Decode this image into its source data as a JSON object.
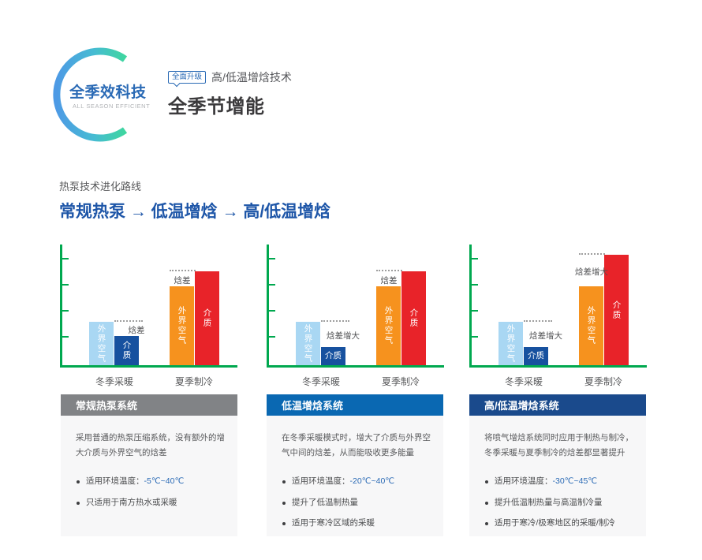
{
  "brand": {
    "logo_text": "全季效科技",
    "logo_subtext": "ALL SEASON EFFICIENT",
    "badge": "全面升级",
    "tagline": "高/低温增焓技术",
    "title": "全季节增能"
  },
  "evolution": {
    "label": "热泵技术进化路线",
    "path": "常规热泵 → 低温增焓 → 高/低温增焓"
  },
  "colors": {
    "axis_green": "#00A84F",
    "bar_light_blue": "#A9D7F3",
    "bar_dark_blue": "#17519F",
    "bar_orange": "#F6921E",
    "bar_red": "#E82329",
    "brand_blue": "#2A6AB5",
    "path_blue": "#1E56A8",
    "dotted_gray": "#9E9E9E",
    "header_colors": [
      "#818386",
      "#0A68B2",
      "#1A4A8C"
    ],
    "logo_gradient": [
      "#4D9AE5",
      "#46BCD2",
      "#3FD6A0"
    ]
  },
  "chart_data": [
    {
      "type": "bar",
      "title": "常规热泵系统",
      "categories": [
        "冬季采暖",
        "夏季制冷"
      ],
      "ylabel": "",
      "xlabel": "",
      "axis_numeric_labels": false,
      "value_note": "relative enthalpy levels, unlabeled green axis with 4 ticks",
      "groups": [
        {
          "category": "冬季采暖",
          "bars": [
            {
              "label": "外界空气",
              "value": 55,
              "color": "#A9D7F3"
            },
            {
              "label": "介质",
              "value": 37,
              "color": "#17519F"
            }
          ],
          "gap_label": "焓差",
          "dashed_line_at": 55
        },
        {
          "category": "夏季制冷",
          "bars": [
            {
              "label": "外界空气",
              "value": 100,
              "color": "#F6921E"
            },
            {
              "label": "介质",
              "value": 119,
              "color": "#E82329"
            }
          ],
          "gap_label": "焓差",
          "dashed_line_at": 119
        }
      ]
    },
    {
      "type": "bar",
      "title": "低温增焓系统",
      "categories": [
        "冬季采暖",
        "夏季制冷"
      ],
      "ylabel": "",
      "xlabel": "",
      "axis_numeric_labels": false,
      "value_note": "relative enthalpy levels, unlabeled green axis with 4 ticks",
      "groups": [
        {
          "category": "冬季采暖",
          "bars": [
            {
              "label": "外界空气",
              "value": 55,
              "color": "#A9D7F3"
            },
            {
              "label": "介质",
              "value": 23,
              "color": "#17519F"
            }
          ],
          "gap_label": "焓差增大",
          "dashed_line_at": 55
        },
        {
          "category": "夏季制冷",
          "bars": [
            {
              "label": "外界空气",
              "value": 100,
              "color": "#F6921E"
            },
            {
              "label": "介质",
              "value": 119,
              "color": "#E82329"
            }
          ],
          "gap_label": "焓差",
          "dashed_line_at": 119
        }
      ]
    },
    {
      "type": "bar",
      "title": "高/低温增焓系统",
      "categories": [
        "冬季采暖",
        "夏季制冷"
      ],
      "ylabel": "",
      "xlabel": "",
      "axis_numeric_labels": false,
      "value_note": "relative enthalpy levels, unlabeled green axis with 4 ticks",
      "groups": [
        {
          "category": "冬季采暖",
          "bars": [
            {
              "label": "外界空气",
              "value": 55,
              "color": "#A9D7F3"
            },
            {
              "label": "介质",
              "value": 23,
              "color": "#17519F"
            }
          ],
          "gap_label": "焓差增大",
          "dashed_line_at": 55
        },
        {
          "category": "夏季制冷",
          "bars": [
            {
              "label": "外界空气",
              "value": 100,
              "color": "#F6921E"
            },
            {
              "label": "介质",
              "value": 140,
              "color": "#E82329"
            }
          ],
          "gap_label": "焓差增大",
          "dashed_line_at": 140
        }
      ]
    }
  ],
  "cards": [
    {
      "title": "常规热泵系统",
      "header_color": "#818386",
      "description": "采用普通的热泵压缩系统，没有额外的增大介质与外界空气的焓差",
      "bullets": [
        {
          "text": "适用环境温度：",
          "highlight": "-5℃~40℃"
        },
        {
          "text": "只适用于南方热水或采暖",
          "highlight": ""
        }
      ]
    },
    {
      "title": "低温增焓系统",
      "header_color": "#0A68B2",
      "description": "在冬季采暖模式时，增大了介质与外界空气中间的焓差，从而能吸收更多能量",
      "bullets": [
        {
          "text": "适用环境温度：",
          "highlight": "-20℃~40℃"
        },
        {
          "text": "提升了低温制热量",
          "highlight": ""
        },
        {
          "text": "适用于寒冷区域的采暖",
          "highlight": ""
        }
      ]
    },
    {
      "title": "高/低温增焓系统",
      "header_color": "#1A4A8C",
      "description": "将喷气增焓系统同时应用于制热与制冷，冬季采暖与夏季制冷的焓差都显著提升",
      "bullets": [
        {
          "text": "适用环境温度：",
          "highlight": "-30℃~45℃"
        },
        {
          "text": "提升低温制热量与高温制冷量",
          "highlight": ""
        },
        {
          "text": "适用于寒冷/极寒地区的采暖/制冷",
          "highlight": ""
        }
      ]
    }
  ]
}
